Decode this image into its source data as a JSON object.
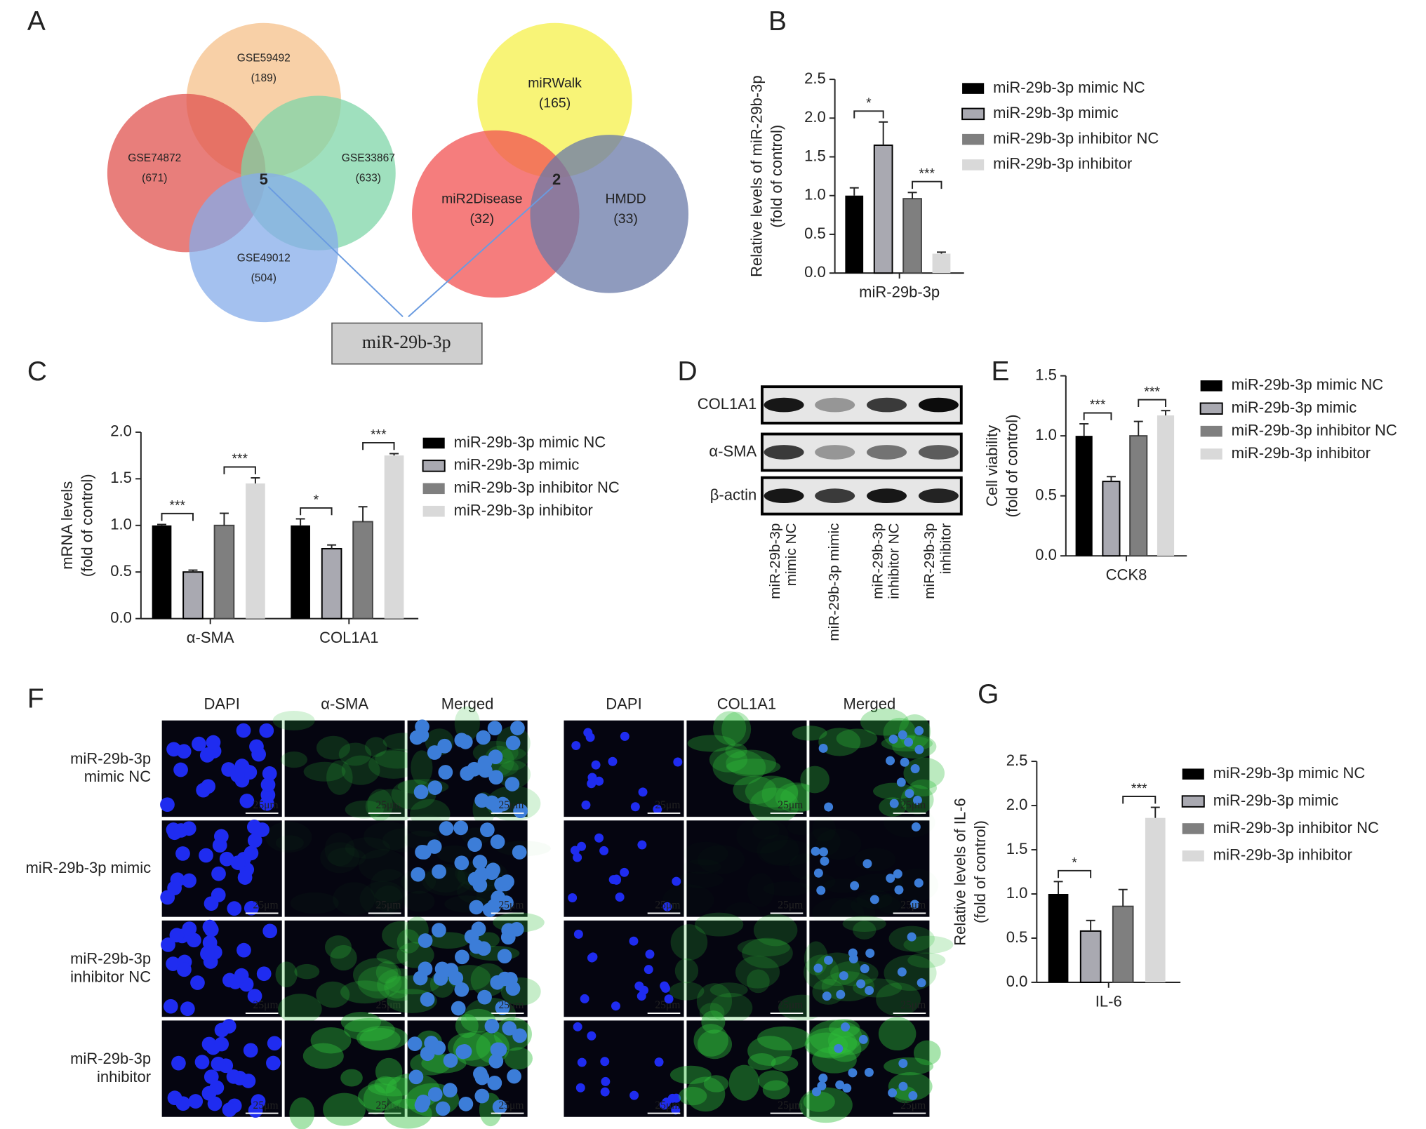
{
  "panel_labels": [
    "A",
    "D",
    "F"
  ],
  "venn": [
    {
      "sets": [
        {
          "name": "GSE59492",
          "count": "(189)"
        },
        {
          "name": "GSE74872",
          "count": "(671)"
        },
        {
          "name": "GSE33867",
          "count": "(633)"
        },
        {
          "name": "GSE49012",
          "count": "(504)"
        }
      ],
      "intersection": "5"
    },
    {
      "sets": [
        {
          "name": "miRWalk",
          "count": "(165)"
        },
        {
          "name": "miR2Disease",
          "count": "(32)"
        },
        {
          "name": "HMDD",
          "count": "(33)"
        }
      ],
      "intersection": "2"
    }
  ],
  "venn_result": "miR-29b-3p",
  "western_blot": {
    "rows": [
      "COL1A1",
      "α-SMA",
      "β-actin"
    ],
    "columns": [
      [
        "miR-29b-3p",
        "mimic NC"
      ],
      [
        "miR-29b-3p mimic"
      ],
      [
        "miR-29b-3p",
        "inhibitor NC"
      ],
      [
        "miR-29b-3p",
        "inhibitor"
      ]
    ]
  },
  "microscopy": {
    "left_columns": [
      "DAPI",
      "α-SMA",
      "Merged"
    ],
    "right_columns": [
      "DAPI",
      "COL1A1",
      "Merged"
    ],
    "rows": [
      [
        "miR-29b-3p",
        "mimic NC"
      ],
      [
        "miR-29b-3p mimic"
      ],
      [
        "miR-29b-3p",
        "inhibitor NC"
      ],
      [
        "miR-29b-3p",
        "inhibitor"
      ]
    ],
    "scale_bar": "25μm"
  },
  "chart_data": [
    {
      "type": "bar",
      "panel": "B",
      "ylabel": [
        "Relative levels of miR-29b-3p",
        "(fold of control)"
      ],
      "categories": [
        "miR-29b-3p"
      ],
      "series": [
        {
          "name": "miR-29b-3p mimic NC",
          "color": "#000000",
          "values": [
            1.0
          ],
          "errors": [
            0.1
          ]
        },
        {
          "name": "miR-29b-3p mimic",
          "color": "#a9a9b1",
          "values": [
            1.65
          ],
          "errors": [
            0.3
          ]
        },
        {
          "name": "miR-29b-3p inhibitor NC",
          "color": "#7f7f7f",
          "values": [
            0.96
          ],
          "errors": [
            0.08
          ]
        },
        {
          "name": "miR-29b-3p inhibitor",
          "color": "#d9d9d9",
          "values": [
            0.25
          ],
          "errors": [
            0.02
          ]
        }
      ],
      "significance": [
        [
          "*",
          "***"
        ]
      ],
      "ylim": [
        0,
        2.5
      ],
      "yticks": [
        {
          "value": 0,
          "label": "0.0"
        },
        0.5,
        {
          "value": 1,
          "label": "1.0"
        },
        1.5,
        {
          "value": 2,
          "label": "2.0"
        },
        2.5
      ]
    },
    {
      "type": "bar",
      "panel": "C",
      "ylabel": [
        "mRNA levels",
        "(fold of control)"
      ],
      "categories": [
        "α-SMA",
        "COL1A1"
      ],
      "series": [
        {
          "name": "miR-29b-3p mimic NC",
          "color": "#000000",
          "values": [
            1.0,
            1.0
          ],
          "errors": [
            0.01,
            0.07
          ]
        },
        {
          "name": "miR-29b-3p mimic",
          "color": "#a9a9b1",
          "values": [
            0.5,
            0.75
          ],
          "errors": [
            0.02,
            0.04
          ]
        },
        {
          "name": "miR-29b-3p inhibitor NC",
          "color": "#7f7f7f",
          "values": [
            1.0,
            1.04
          ],
          "errors": [
            0.13,
            0.16
          ]
        },
        {
          "name": "miR-29b-3p inhibitor",
          "color": "#d9d9d9",
          "values": [
            1.45,
            1.75
          ],
          "errors": [
            0.06,
            0.02
          ]
        }
      ],
      "significance": [
        [
          "***",
          "***"
        ],
        [
          "*",
          "***"
        ]
      ],
      "ylim": [
        0,
        2.0
      ],
      "yticks": [
        {
          "value": 0,
          "label": "0.0"
        },
        0.5,
        {
          "value": 1,
          "label": "1.0"
        },
        1.5,
        {
          "value": 2,
          "label": "2.0"
        }
      ]
    },
    {
      "type": "bar",
      "panel": "E",
      "ylabel": [
        "Cell viability",
        "(fold of control)"
      ],
      "categories": [
        "CCK8"
      ],
      "series": [
        {
          "name": "miR-29b-3p mimic NC",
          "color": "#000000",
          "values": [
            1.0
          ],
          "errors": [
            0.1
          ]
        },
        {
          "name": "miR-29b-3p mimic",
          "color": "#a9a9b1",
          "values": [
            0.62
          ],
          "errors": [
            0.04
          ]
        },
        {
          "name": "miR-29b-3p inhibitor NC",
          "color": "#7f7f7f",
          "values": [
            1.0
          ],
          "errors": [
            0.12
          ]
        },
        {
          "name": "miR-29b-3p inhibitor",
          "color": "#d9d9d9",
          "values": [
            1.17
          ],
          "errors": [
            0.04
          ]
        }
      ],
      "significance": [
        [
          "***",
          "***"
        ]
      ],
      "ylim": [
        0,
        1.5
      ],
      "yticks": [
        {
          "value": 0,
          "label": "0.0"
        },
        0.5,
        {
          "value": 1,
          "label": "1.0"
        },
        1.5
      ]
    },
    {
      "type": "bar",
      "panel": "G",
      "ylabel": [
        "Relative levels of IL-6",
        "(fold of control)"
      ],
      "categories": [
        "IL-6"
      ],
      "series": [
        {
          "name": "miR-29b-3p mimic NC",
          "color": "#000000",
          "values": [
            1.0
          ],
          "errors": [
            0.14
          ]
        },
        {
          "name": "miR-29b-3p mimic",
          "color": "#a9a9b1",
          "values": [
            0.58
          ],
          "errors": [
            0.12
          ]
        },
        {
          "name": "miR-29b-3p inhibitor NC",
          "color": "#7f7f7f",
          "values": [
            0.86
          ],
          "errors": [
            0.19
          ]
        },
        {
          "name": "miR-29b-3p inhibitor",
          "color": "#d9d9d9",
          "values": [
            1.86
          ],
          "errors": [
            0.12
          ]
        }
      ],
      "significance": [
        [
          "*",
          "***"
        ]
      ],
      "ylim": [
        0,
        2.5
      ],
      "yticks": [
        {
          "value": 0,
          "label": "0.0"
        },
        0.5,
        {
          "value": 1,
          "label": "1.0"
        },
        1.5,
        {
          "value": 2,
          "label": "2.0"
        },
        2.5
      ]
    }
  ]
}
